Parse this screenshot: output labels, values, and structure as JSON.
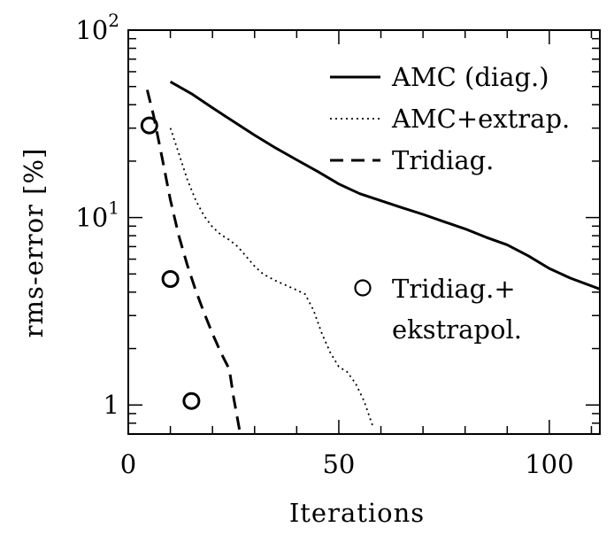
{
  "chart_data": {
    "type": "line",
    "title": "",
    "xlabel": "Iterations",
    "ylabel": "rms-error [%]",
    "xlim": [
      0,
      112
    ],
    "ylim": [
      0.7,
      100
    ],
    "yscale": "log",
    "x_ticks": [
      0,
      50,
      100
    ],
    "x_tick_labels": [
      "0",
      "50",
      "100"
    ],
    "y_tick_labels": [
      {
        "value": 1,
        "base": "1",
        "exp": ""
      },
      {
        "value": 10,
        "base": "10",
        "exp": "1"
      },
      {
        "value": 100,
        "base": "10",
        "exp": "2"
      }
    ],
    "legend_position": "right",
    "series": [
      {
        "name": "AMC (diag.)",
        "style": "solid",
        "x": [
          10,
          15,
          20,
          25,
          30,
          35,
          40,
          45,
          50,
          55,
          60,
          65,
          70,
          75,
          80,
          85,
          90,
          95,
          100,
          105,
          112
        ],
        "y": [
          53,
          45.8,
          38.5,
          32.5,
          27.5,
          23.5,
          20.3,
          17.6,
          15.1,
          13.4,
          12.3,
          11.3,
          10.4,
          9.5,
          8.7,
          7.85,
          7.15,
          6.25,
          5.35,
          4.75,
          4.15
        ]
      },
      {
        "name": "AMC+extrap.",
        "style": "dotted",
        "x": [
          10,
          12,
          14,
          16,
          18,
          20,
          22,
          24,
          26,
          28,
          30,
          32,
          35,
          38,
          40,
          42,
          44,
          46,
          48,
          50,
          52,
          54,
          56,
          58
        ],
        "y": [
          30,
          22,
          16,
          12.4,
          10.2,
          8.9,
          8.1,
          7.6,
          7,
          6.2,
          5.5,
          5,
          4.6,
          4.3,
          4.1,
          3.9,
          3.2,
          2.4,
          1.9,
          1.6,
          1.5,
          1.3,
          1.05,
          0.78
        ]
      },
      {
        "name": "Tridiag.",
        "style": "dashed",
        "x": [
          4.5,
          6,
          8,
          10,
          12,
          14,
          16,
          18,
          20,
          22,
          24,
          25,
          26.5
        ],
        "y": [
          48,
          35,
          21,
          12.4,
          8,
          5.6,
          4.1,
          3.1,
          2.4,
          1.9,
          1.55,
          1.1,
          0.72
        ]
      },
      {
        "name": "Tridiag.+ ekstrapol.",
        "style": "circles",
        "x": [
          5,
          10,
          15
        ],
        "y": [
          31,
          4.7,
          1.05
        ]
      }
    ],
    "legend": [
      {
        "lines": [
          "AMC (diag.)"
        ],
        "style": "solid"
      },
      {
        "lines": [
          "AMC+extrap."
        ],
        "style": "dotted"
      },
      {
        "lines": [
          "Tridiag."
        ],
        "style": "dashed"
      },
      {
        "lines": [
          "Tridiag.+",
          "ekstrapol."
        ],
        "style": "circles"
      }
    ]
  }
}
